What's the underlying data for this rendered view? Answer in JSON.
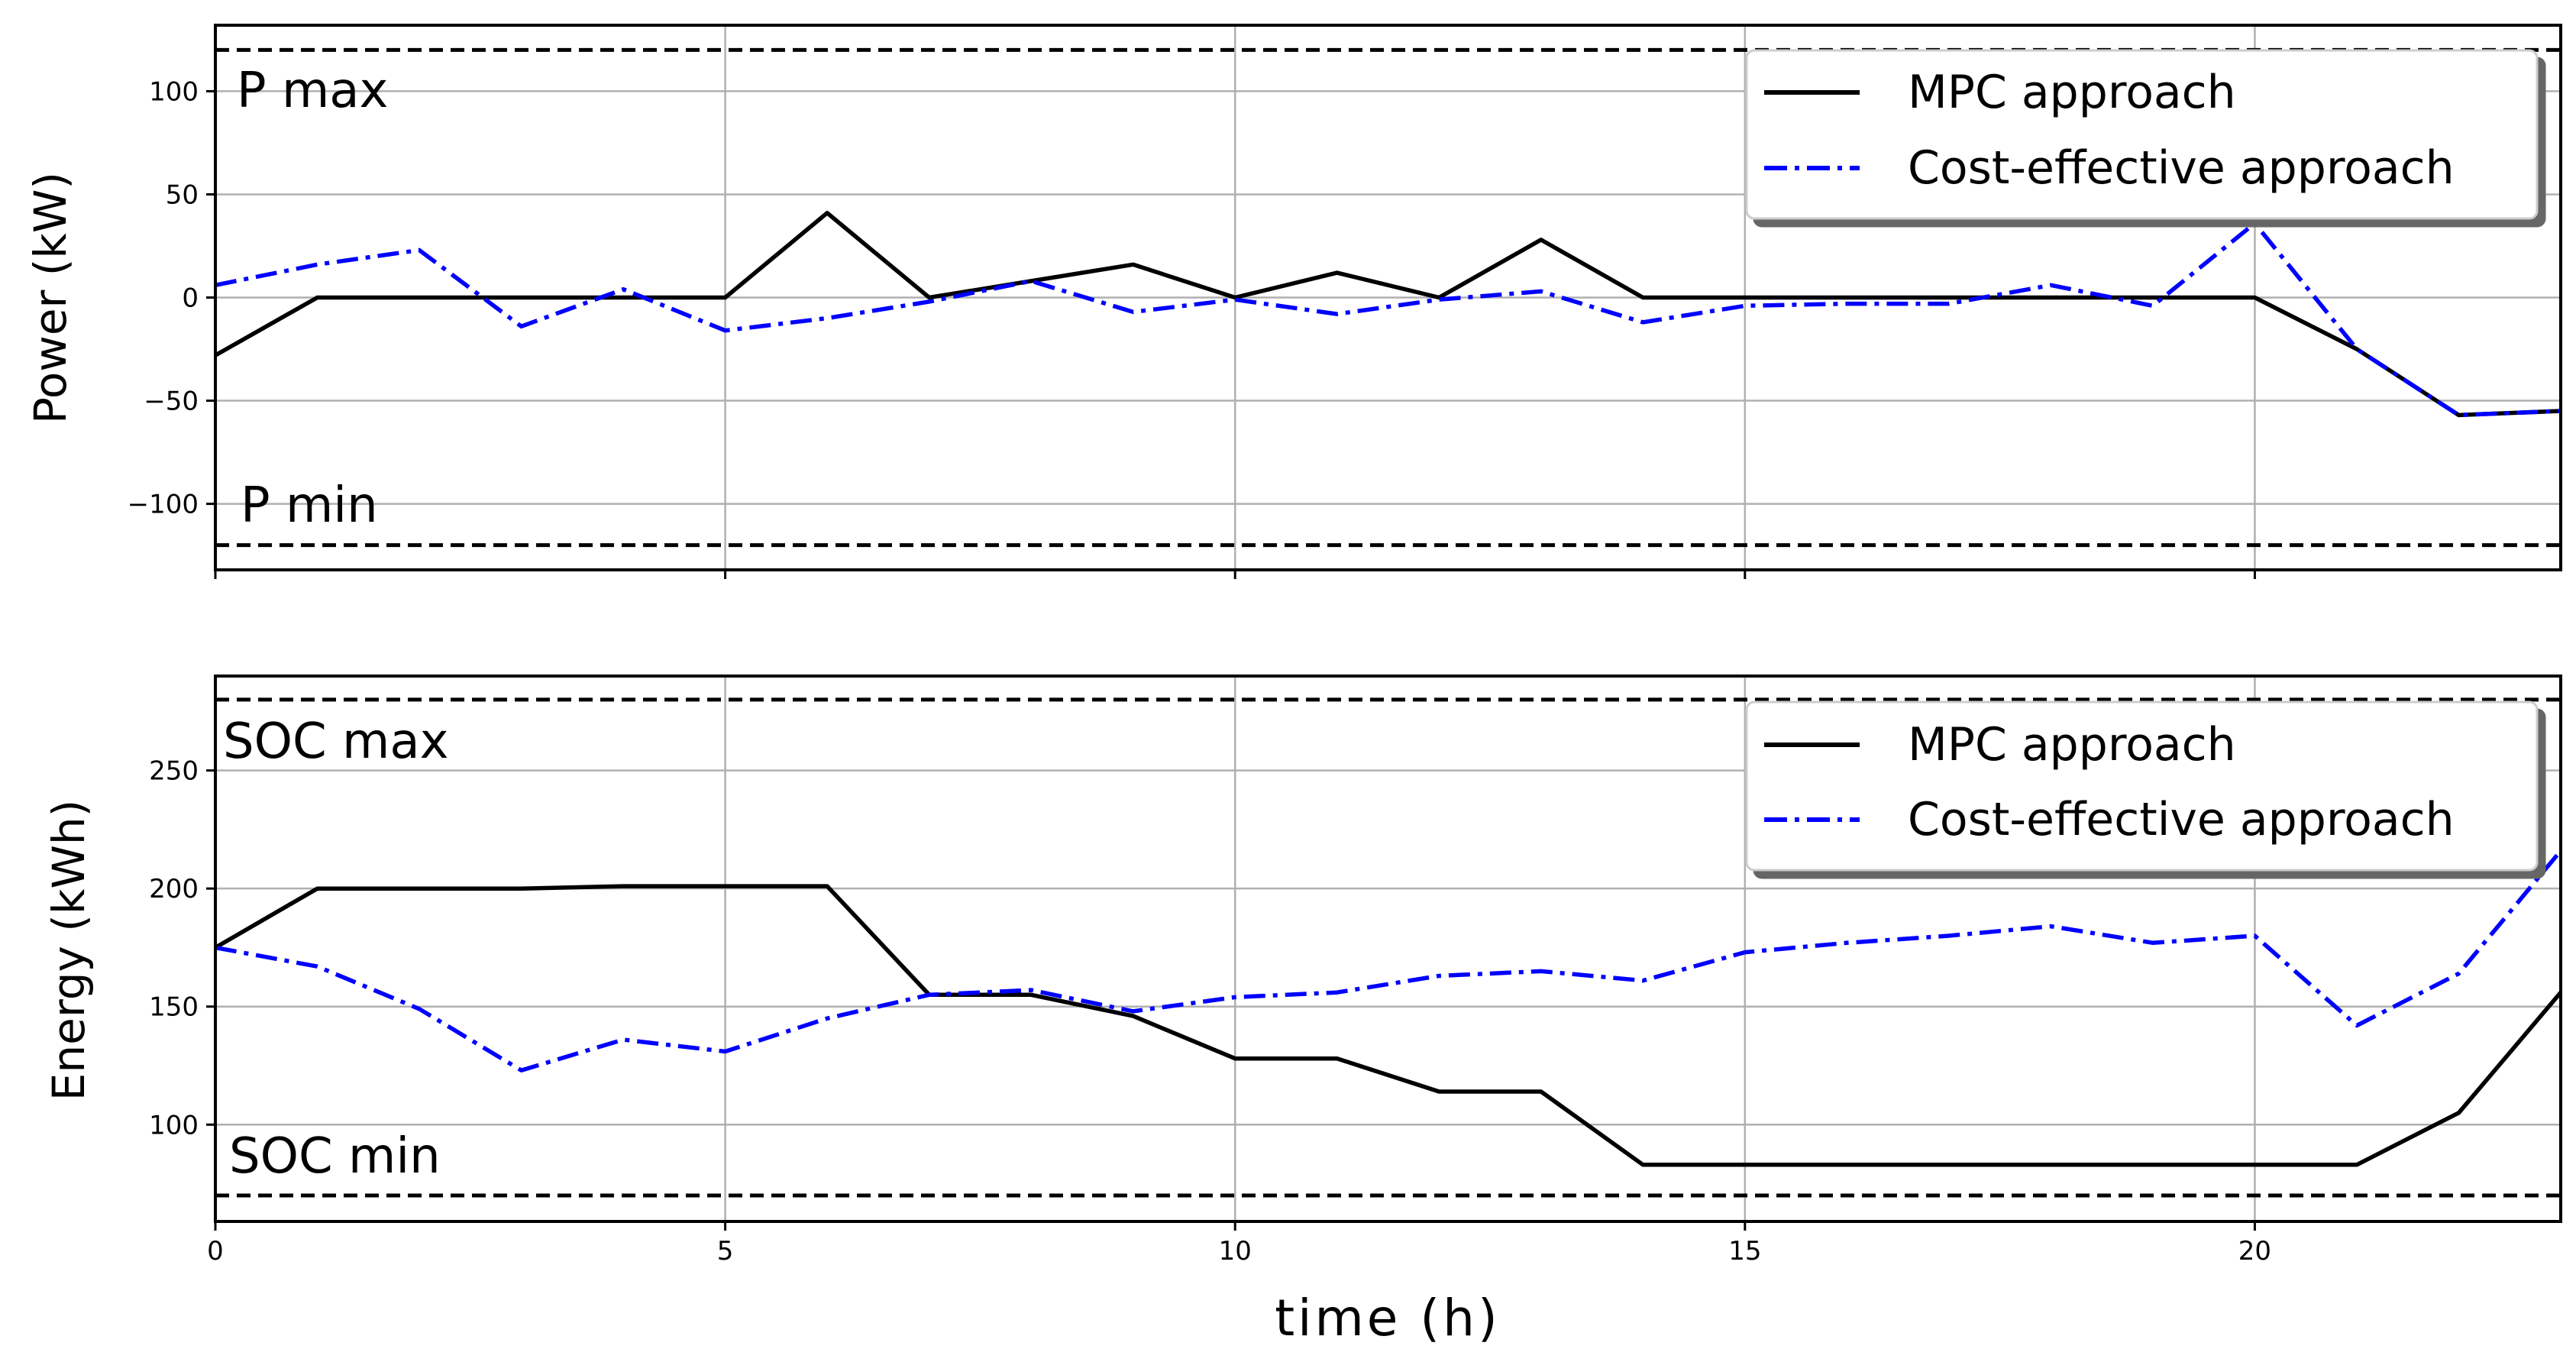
{
  "chart_data": [
    {
      "type": "line",
      "ylabel": "Power (kW)",
      "xlim": [
        0,
        23
      ],
      "ylim": [
        -132,
        132
      ],
      "yticks": [
        -100,
        -50,
        0,
        50,
        100
      ],
      "ytick_labels": [
        "−100",
        "−50",
        "0",
        "50",
        "100"
      ],
      "xticks": [
        0,
        5,
        10,
        15,
        20
      ],
      "grid": true,
      "legend_position": "top-right",
      "x": [
        0,
        1,
        2,
        3,
        4,
        5,
        6,
        7,
        8,
        9,
        10,
        11,
        12,
        13,
        14,
        15,
        16,
        17,
        18,
        19,
        20,
        21,
        22,
        23
      ],
      "series": [
        {
          "name": "MPC approach",
          "color": "#000000",
          "style": "solid",
          "values": [
            -28,
            0,
            0,
            0,
            0,
            0,
            41,
            0,
            8,
            16,
            0,
            12,
            0,
            28,
            0,
            0,
            0,
            0,
            0,
            0,
            0,
            -25,
            -57,
            -55
          ]
        },
        {
          "name": "Cost-effective approach",
          "color": "#0000ff",
          "style": "dashdot",
          "values": [
            6,
            16,
            23,
            -14,
            4,
            -16,
            -10,
            -2,
            8,
            -7,
            -1,
            -8,
            -1,
            3,
            -12,
            -4,
            -3,
            -3,
            6,
            -4,
            36,
            -25,
            -57,
            -55
          ]
        }
      ],
      "limits": [
        {
          "label": "P max",
          "value": 120
        },
        {
          "label": "P min",
          "value": -120
        }
      ]
    },
    {
      "type": "line",
      "ylabel": "Energy (kWh)",
      "xlabel": "time (h)",
      "xlim": [
        0,
        23
      ],
      "ylim": [
        59,
        290
      ],
      "yticks": [
        100,
        150,
        200,
        250
      ],
      "ytick_labels": [
        "100",
        "150",
        "200",
        "250"
      ],
      "xticks": [
        0,
        5,
        10,
        15,
        20
      ],
      "xtick_labels": [
        "0",
        "5",
        "10",
        "15",
        "20"
      ],
      "grid": true,
      "legend_position": "top-right",
      "x": [
        0,
        1,
        2,
        3,
        4,
        5,
        6,
        7,
        8,
        9,
        10,
        11,
        12,
        13,
        14,
        15,
        16,
        17,
        18,
        19,
        20,
        21,
        22,
        23
      ],
      "series": [
        {
          "name": "MPC approach",
          "color": "#000000",
          "style": "solid",
          "values": [
            175,
            200,
            200,
            200,
            201,
            201,
            201,
            155,
            155,
            146,
            128,
            128,
            114,
            114,
            83,
            83,
            83,
            83,
            83,
            83,
            83,
            83,
            105,
            156
          ]
        },
        {
          "name": "Cost-effective approach",
          "color": "#0000ff",
          "style": "dashdot",
          "values": [
            175,
            167,
            149,
            123,
            136,
            131,
            145,
            155,
            157,
            148,
            154,
            156,
            163,
            165,
            161,
            173,
            177,
            180,
            184,
            177,
            180,
            142,
            164,
            216
          ]
        }
      ],
      "limits": [
        {
          "label": "SOC max",
          "value": 280
        },
        {
          "label": "SOC min",
          "value": 70
        }
      ]
    }
  ]
}
